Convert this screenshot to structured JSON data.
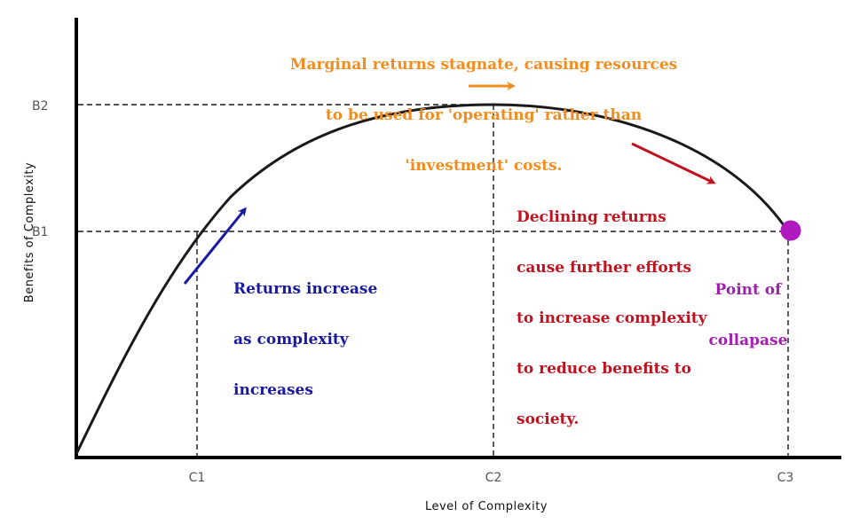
{
  "axes": {
    "xlabel": "Level of Complexity",
    "ylabel": "Benefits of Complexity",
    "x_ticks": [
      "C1",
      "C2",
      "C3"
    ],
    "y_ticks": [
      "B2",
      "B1"
    ]
  },
  "annotations": {
    "stagnate": {
      "lines": [
        "Marginal returns stagnate, causing resources",
        "to be used for 'operating' rather than",
        "'investment' costs."
      ],
      "color": "#F28C1E"
    },
    "increase": {
      "lines": [
        "Returns increase",
        "as complexity",
        "increases"
      ],
      "color": "#1A1AA0"
    },
    "decline": {
      "lines": [
        "Declining returns",
        "cause further efforts",
        "to increase complexity",
        "to reduce benefits to",
        "society."
      ],
      "color": "#C0121E"
    },
    "collapse": {
      "lines": [
        "Point of",
        "collapase"
      ],
      "color": "#A020B0"
    }
  },
  "colors": {
    "curve": "#1A1A1A",
    "guide": "#1A1A1A",
    "collapse_point": "#B018C0"
  }
}
